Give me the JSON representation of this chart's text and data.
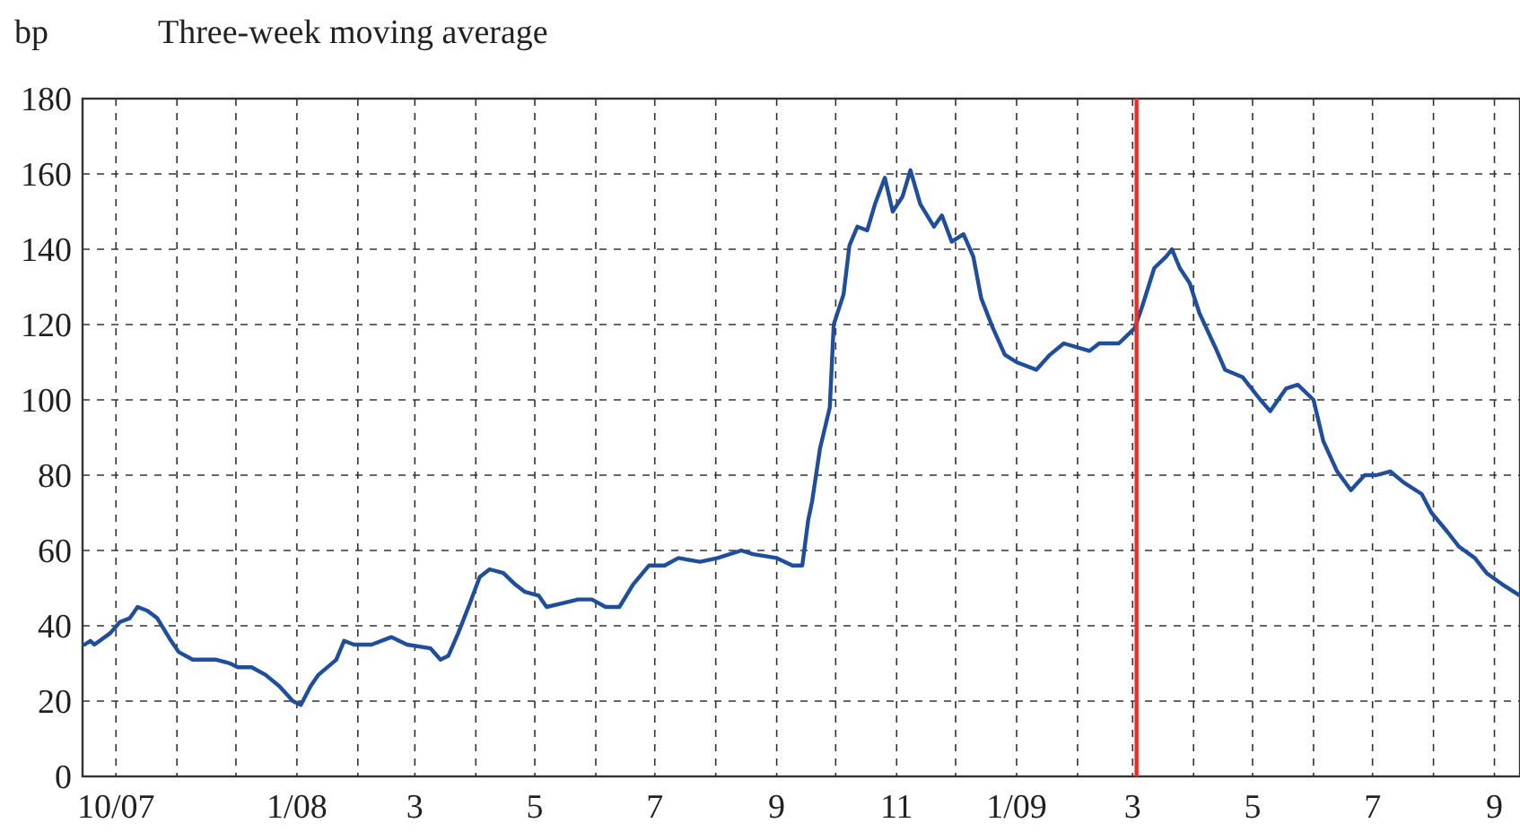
{
  "chart_data": {
    "type": "line",
    "title": "Three-week moving average",
    "ylabel": "bp",
    "x": [
      "2007-09-15",
      "2007-09-18",
      "2007-09-20",
      "2007-09-28",
      "2007-10-03",
      "2007-10-08",
      "2007-10-12",
      "2007-10-17",
      "2007-10-22",
      "2007-10-29",
      "2007-11-02",
      "2007-11-09",
      "2007-11-21",
      "2007-11-28",
      "2007-12-02",
      "2007-12-09",
      "2007-12-16",
      "2007-12-23",
      "2007-12-30",
      "2008-01-03",
      "2008-01-08",
      "2008-01-12",
      "2008-01-21",
      "2008-01-25",
      "2008-01-30",
      "2008-02-08",
      "2008-02-18",
      "2008-02-26",
      "2008-03-09",
      "2008-03-14",
      "2008-03-18",
      "2008-03-23",
      "2008-03-29",
      "2008-04-03",
      "2008-04-08",
      "2008-04-15",
      "2008-04-21",
      "2008-04-26",
      "2008-05-03",
      "2008-05-07",
      "2008-05-15",
      "2008-05-23",
      "2008-05-30",
      "2008-06-06",
      "2008-06-13",
      "2008-06-20",
      "2008-06-28",
      "2008-07-06",
      "2008-07-13",
      "2008-07-24",
      "2008-08-02",
      "2008-08-14",
      "2008-08-20",
      "2008-09-01",
      "2008-09-09",
      "2008-09-14",
      "2008-09-17",
      "2008-09-19",
      "2008-09-23",
      "2008-09-28",
      "2008-09-30",
      "2008-10-05",
      "2008-10-08",
      "2008-10-12",
      "2008-10-17",
      "2008-10-21",
      "2008-10-26",
      "2008-10-30",
      "2008-11-04",
      "2008-11-08",
      "2008-11-13",
      "2008-11-20",
      "2008-11-24",
      "2008-11-29",
      "2008-12-05",
      "2008-12-10",
      "2008-12-14",
      "2008-12-20",
      "2008-12-26",
      "2009-01-01",
      "2009-01-11",
      "2009-01-18",
      "2009-01-25",
      "2009-02-07",
      "2009-02-12",
      "2009-02-22",
      "2009-03-02",
      "2009-03-06",
      "2009-03-12",
      "2009-03-18",
      "2009-03-21",
      "2009-03-25",
      "2009-03-30",
      "2009-04-04",
      "2009-04-12",
      "2009-04-17",
      "2009-04-26",
      "2009-05-05",
      "2009-05-10",
      "2009-05-18",
      "2009-05-24",
      "2009-06-01",
      "2009-06-06",
      "2009-06-13",
      "2009-06-20",
      "2009-06-27",
      "2009-07-03",
      "2009-07-10",
      "2009-07-17",
      "2009-07-26",
      "2009-07-31",
      "2009-08-08",
      "2009-08-14",
      "2009-08-22",
      "2009-08-28",
      "2009-09-05",
      "2009-09-14"
    ],
    "series": [
      {
        "color": "#1f4e9c",
        "values": [
          35,
          36,
          35,
          38,
          41,
          42,
          45,
          44,
          42,
          36,
          33,
          31,
          31,
          30,
          29,
          29,
          27,
          24,
          20,
          19,
          24,
          27,
          31,
          36,
          35,
          35,
          37,
          35,
          34,
          31,
          32,
          38,
          46,
          53,
          55,
          54,
          51,
          49,
          48,
          45,
          46,
          47,
          47,
          45,
          45,
          51,
          56,
          56,
          58,
          57,
          58,
          60,
          59,
          58,
          56,
          56,
          68,
          73,
          87,
          98,
          120,
          128,
          141,
          146,
          145,
          152,
          159,
          150,
          154,
          161,
          152,
          146,
          149,
          142,
          144,
          138,
          127,
          119,
          112,
          110,
          108,
          112,
          115,
          113,
          115,
          115,
          119,
          125,
          135,
          138,
          140,
          135,
          131,
          123,
          114,
          108,
          106,
          100,
          97,
          103,
          104,
          100,
          89,
          81,
          76,
          80,
          80,
          81,
          78,
          75,
          70,
          65,
          61,
          58,
          54,
          51,
          48
        ]
      }
    ],
    "xlim": [
      "2007-09-14",
      "2009-09-14"
    ],
    "xticks": [
      {
        "value": "2007-10-01",
        "label": "10/07"
      },
      {
        "value": "2007-11-01",
        "label": null
      },
      {
        "value": "2007-12-01",
        "label": null
      },
      {
        "value": "2008-01-01",
        "label": "1/08"
      },
      {
        "value": "2008-02-01",
        "label": null
      },
      {
        "value": "2008-03-01",
        "label": "3"
      },
      {
        "value": "2008-04-01",
        "label": null
      },
      {
        "value": "2008-05-01",
        "label": "5"
      },
      {
        "value": "2008-06-01",
        "label": null
      },
      {
        "value": "2008-07-01",
        "label": "7"
      },
      {
        "value": "2008-08-01",
        "label": null
      },
      {
        "value": "2008-09-01",
        "label": "9"
      },
      {
        "value": "2008-10-01",
        "label": null
      },
      {
        "value": "2008-11-01",
        "label": "11"
      },
      {
        "value": "2008-12-01",
        "label": null
      },
      {
        "value": "2009-01-01",
        "label": "1/09"
      },
      {
        "value": "2009-02-01",
        "label": null
      },
      {
        "value": "2009-03-01",
        "label": "3"
      },
      {
        "value": "2009-04-01",
        "label": null
      },
      {
        "value": "2009-05-01",
        "label": "5"
      },
      {
        "value": "2009-06-01",
        "label": null
      },
      {
        "value": "2009-07-01",
        "label": "7"
      },
      {
        "value": "2009-08-01",
        "label": null
      },
      {
        "value": "2009-09-01",
        "label": "9"
      }
    ],
    "ylim": [
      0,
      180
    ],
    "yticks": [
      0,
      20,
      40,
      60,
      80,
      100,
      120,
      140,
      160,
      180
    ],
    "grid": true,
    "line_style": "solid",
    "ref_lines": [
      {
        "axis": "x",
        "value": "2009-03-03",
        "color": "#e8302a"
      }
    ]
  }
}
